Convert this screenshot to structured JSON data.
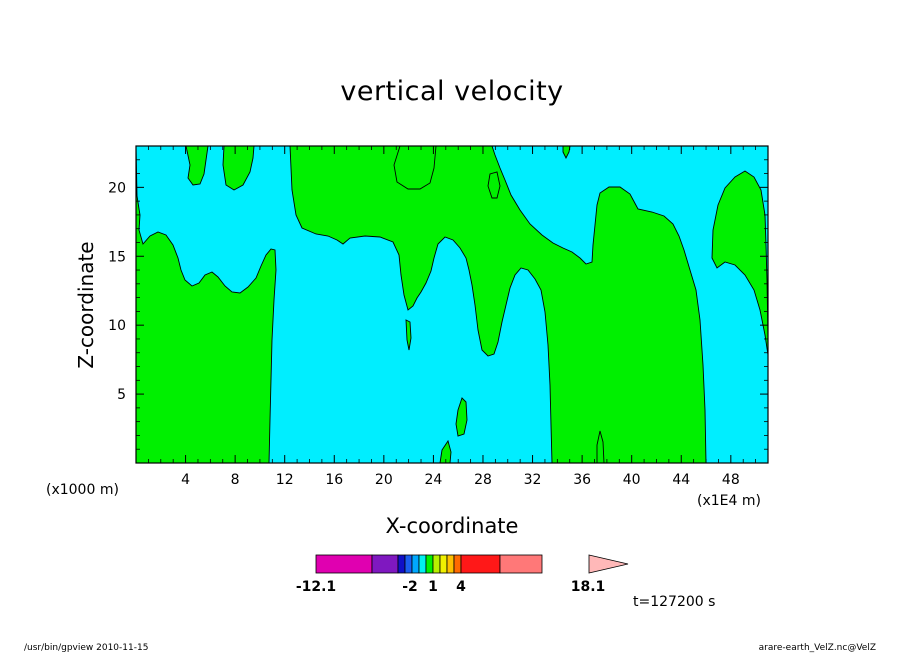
{
  "chart_data": {
    "type": "heatmap",
    "title": "vertical velocity",
    "xlabel": "X-coordinate",
    "ylabel": "Z-coordinate",
    "x_unit_left": "(x1000 m)",
    "x_unit_right": "(x1E4 m)",
    "xlim": [
      0,
      51
    ],
    "ylim": [
      0,
      23
    ],
    "x_ticks": [
      4,
      8,
      12,
      16,
      20,
      24,
      28,
      32,
      36,
      40,
      44,
      48
    ],
    "y_ticks": [
      5,
      10,
      15,
      20
    ],
    "colorbar": {
      "min_label": "-12.1",
      "max_label": "18.1",
      "tick_labels": [
        "-12.1",
        "-2",
        "1",
        "4",
        "18.1"
      ],
      "colors": [
        "#e000b0",
        "#7f18c0",
        "#1010c8",
        "#1a5ef0",
        "#00a8ff",
        "#00f0f0",
        "#00f000",
        "#b8f000",
        "#f0f000",
        "#ffc000",
        "#ff6a00",
        "#ff1818",
        "#ff7878",
        "#ffb8b8"
      ]
    },
    "region_colors": {
      "positive": "#00f000",
      "negative": "#00eeff"
    },
    "time_label": "t=127200 s"
  },
  "footer": {
    "left": "/usr/bin/gpview   2010-11-15",
    "right": "arare-earth_VelZ.nc@VelZ"
  }
}
